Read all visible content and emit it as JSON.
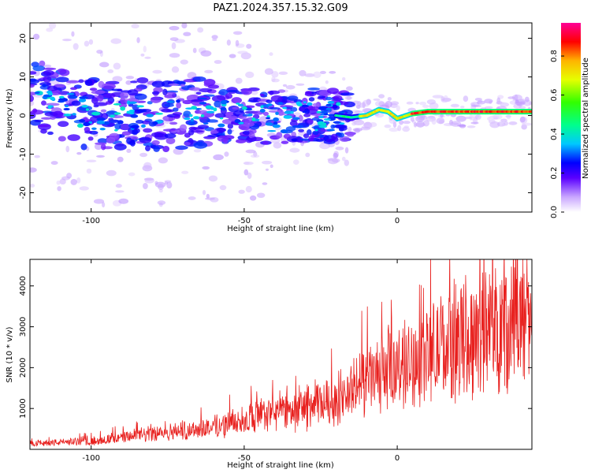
{
  "title": "PAZ1.2024.357.15.32.G09",
  "chart_data": [
    {
      "type": "heatmap",
      "xlabel": "Height of straight line (km)",
      "ylabel": "Frequency (Hz)",
      "xlim": [
        -120,
        44
      ],
      "ylim": [
        -25,
        24
      ],
      "xticks": [
        -100,
        -50,
        0
      ],
      "yticks": [
        -20,
        -10,
        0,
        10,
        20
      ],
      "ridge": [
        {
          "x": -118,
          "f": 5
        },
        {
          "x": -112,
          "f": 4
        },
        {
          "x": -105,
          "f": 1
        },
        {
          "x": -95,
          "f": 0
        },
        {
          "x": -85,
          "f": 0.5
        },
        {
          "x": -75,
          "f": 0
        },
        {
          "x": -65,
          "f": 0.5
        },
        {
          "x": -55,
          "f": 0
        },
        {
          "x": -45,
          "f": 0
        },
        {
          "x": -35,
          "f": -0.5
        },
        {
          "x": -25,
          "f": 0
        },
        {
          "x": -20,
          "f": 0
        },
        {
          "x": -15,
          "f": -0.5
        },
        {
          "x": -10,
          "f": 0
        },
        {
          "x": -6,
          "f": 1.5
        },
        {
          "x": -3,
          "f": 1
        },
        {
          "x": 0,
          "f": -0.8
        },
        {
          "x": 5,
          "f": 0.5
        },
        {
          "x": 10,
          "f": 1
        },
        {
          "x": 20,
          "f": 1
        },
        {
          "x": 30,
          "f": 1
        },
        {
          "x": 44,
          "f": 1
        }
      ],
      "colorbar": {
        "label": "Normalized spectral amplitude",
        "range": [
          0,
          0.97
        ],
        "ticks": [
          "0.0",
          "0.2",
          "0.4",
          "0.6",
          "0.8"
        ]
      }
    },
    {
      "type": "line",
      "xlabel": "Height of straight line (km)",
      "ylabel": "SNR (10 * v/v)",
      "xlim": [
        -120,
        44
      ],
      "ylim": [
        0,
        4650
      ],
      "xticks": [
        -100,
        -50,
        0
      ],
      "yticks": [
        1000,
        2000,
        3000,
        4000
      ],
      "color": "#e8201e",
      "trend": [
        {
          "x": -120,
          "y": 150
        },
        {
          "x": -100,
          "y": 200
        },
        {
          "x": -80,
          "y": 380
        },
        {
          "x": -60,
          "y": 550
        },
        {
          "x": -40,
          "y": 900
        },
        {
          "x": -20,
          "y": 1200
        },
        {
          "x": -10,
          "y": 1700
        },
        {
          "x": 0,
          "y": 2000
        },
        {
          "x": 10,
          "y": 2300
        },
        {
          "x": 20,
          "y": 2700
        },
        {
          "x": 30,
          "y": 3000
        },
        {
          "x": 44,
          "y": 3200
        }
      ]
    }
  ]
}
